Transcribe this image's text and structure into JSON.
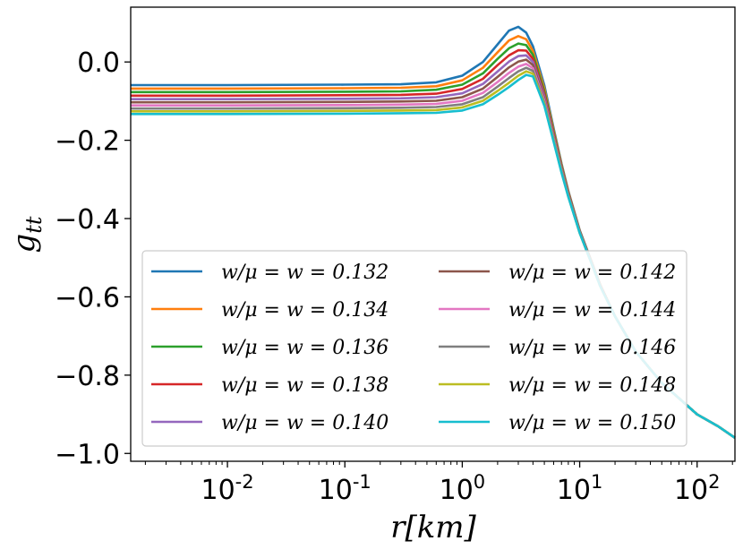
{
  "chart_data": {
    "type": "line",
    "title": "",
    "xlabel": "r[km]",
    "ylabel": "g",
    "ylabel_sub": "tt",
    "xscale": "log",
    "xlim": [
      0.0015,
      210
    ],
    "ylim": [
      -1.02,
      0.14
    ],
    "x_ticks": [
      {
        "value": 0.01,
        "base": "10",
        "exp": "-2"
      },
      {
        "value": 0.1,
        "base": "10",
        "exp": "-1"
      },
      {
        "value": 1,
        "base": "10",
        "exp": "0"
      },
      {
        "value": 10,
        "base": "10",
        "exp": "1"
      },
      {
        "value": 100,
        "base": "10",
        "exp": "2"
      }
    ],
    "y_ticks": [
      {
        "value": 0.0,
        "label": "0.0"
      },
      {
        "value": -0.2,
        "label": "−0.2"
      },
      {
        "value": -0.4,
        "label": "−0.4"
      },
      {
        "value": -0.6,
        "label": "−0.6"
      },
      {
        "value": -0.8,
        "label": "−0.8"
      },
      {
        "value": -1.0,
        "label": "−1.0"
      }
    ],
    "legend_position": "lower-left",
    "x": [
      0.0015,
      0.01,
      0.1,
      0.3,
      0.6,
      1.0,
      1.5,
      2.0,
      2.5,
      3.0,
      3.5,
      4.0,
      5.0,
      6.0,
      7.0,
      8.0,
      10.0,
      13.0,
      15.0,
      20.0,
      30.0,
      50.0,
      100.0,
      150.0,
      210.0
    ],
    "series": [
      {
        "name": "w/μ = w = 0.132",
        "color": "#1f77b4",
        "values": [
          -0.059,
          -0.059,
          -0.058,
          -0.057,
          -0.052,
          -0.035,
          0.0,
          0.045,
          0.08,
          0.09,
          0.075,
          0.04,
          -0.06,
          -0.17,
          -0.26,
          -0.33,
          -0.43,
          -0.52,
          -0.57,
          -0.65,
          -0.74,
          -0.82,
          -0.9,
          -0.93,
          -0.96
        ]
      },
      {
        "name": "w/μ = w = 0.134",
        "color": "#ff7f0e",
        "values": [
          -0.068,
          -0.068,
          -0.067,
          -0.066,
          -0.062,
          -0.047,
          -0.015,
          0.025,
          0.055,
          0.066,
          0.058,
          0.028,
          -0.068,
          -0.175,
          -0.263,
          -0.332,
          -0.431,
          -0.521,
          -0.57,
          -0.65,
          -0.74,
          -0.82,
          -0.9,
          -0.93,
          -0.96
        ]
      },
      {
        "name": "w/μ = w = 0.136",
        "color": "#2ca02c",
        "values": [
          -0.077,
          -0.077,
          -0.076,
          -0.075,
          -0.071,
          -0.058,
          -0.029,
          0.008,
          0.035,
          0.047,
          0.043,
          0.018,
          -0.075,
          -0.18,
          -0.266,
          -0.334,
          -0.432,
          -0.522,
          -0.571,
          -0.65,
          -0.74,
          -0.82,
          -0.9,
          -0.93,
          -0.96
        ]
      },
      {
        "name": "w/μ = w = 0.138",
        "color": "#d62728",
        "values": [
          -0.086,
          -0.086,
          -0.085,
          -0.084,
          -0.081,
          -0.069,
          -0.043,
          -0.008,
          0.017,
          0.03,
          0.029,
          0.008,
          -0.082,
          -0.184,
          -0.269,
          -0.336,
          -0.433,
          -0.522,
          -0.571,
          -0.65,
          -0.74,
          -0.82,
          -0.9,
          -0.93,
          -0.96
        ]
      },
      {
        "name": "w/μ = w = 0.140",
        "color": "#9467bd",
        "values": [
          -0.095,
          -0.095,
          -0.094,
          -0.093,
          -0.09,
          -0.08,
          -0.056,
          -0.024,
          0.001,
          0.015,
          0.017,
          0.0,
          -0.088,
          -0.188,
          -0.272,
          -0.338,
          -0.434,
          -0.523,
          -0.572,
          -0.65,
          -0.74,
          -0.82,
          -0.9,
          -0.93,
          -0.96
        ]
      },
      {
        "name": "w/μ = w = 0.142",
        "color": "#8c564b",
        "values": [
          -0.103,
          -0.103,
          -0.102,
          -0.101,
          -0.099,
          -0.09,
          -0.068,
          -0.038,
          -0.014,
          0.001,
          0.006,
          -0.008,
          -0.094,
          -0.192,
          -0.275,
          -0.34,
          -0.435,
          -0.523,
          -0.572,
          -0.65,
          -0.74,
          -0.82,
          -0.9,
          -0.93,
          -0.96
        ]
      },
      {
        "name": "w/μ = w = 0.144",
        "color": "#e377c2",
        "values": [
          -0.111,
          -0.111,
          -0.11,
          -0.109,
          -0.107,
          -0.099,
          -0.079,
          -0.051,
          -0.028,
          -0.012,
          -0.005,
          -0.016,
          -0.099,
          -0.195,
          -0.277,
          -0.342,
          -0.436,
          -0.524,
          -0.573,
          -0.65,
          -0.74,
          -0.82,
          -0.9,
          -0.93,
          -0.96
        ]
      },
      {
        "name": "w/μ = w = 0.146",
        "color": "#7f7f7f",
        "values": [
          -0.119,
          -0.119,
          -0.118,
          -0.117,
          -0.115,
          -0.108,
          -0.09,
          -0.063,
          -0.041,
          -0.024,
          -0.015,
          -0.023,
          -0.104,
          -0.198,
          -0.279,
          -0.343,
          -0.436,
          -0.524,
          -0.573,
          -0.65,
          -0.74,
          -0.82,
          -0.9,
          -0.93,
          -0.96
        ]
      },
      {
        "name": "w/μ = w = 0.148",
        "color": "#bcbd22",
        "values": [
          -0.126,
          -0.126,
          -0.125,
          -0.124,
          -0.123,
          -0.116,
          -0.099,
          -0.074,
          -0.053,
          -0.035,
          -0.024,
          -0.03,
          -0.108,
          -0.201,
          -0.281,
          -0.344,
          -0.437,
          -0.525,
          -0.574,
          -0.65,
          -0.74,
          -0.82,
          -0.9,
          -0.93,
          -0.96
        ]
      },
      {
        "name": "w/μ = w = 0.150",
        "color": "#17becf",
        "values": [
          -0.133,
          -0.133,
          -0.132,
          -0.131,
          -0.13,
          -0.124,
          -0.108,
          -0.084,
          -0.064,
          -0.046,
          -0.033,
          -0.037,
          -0.112,
          -0.204,
          -0.283,
          -0.345,
          -0.437,
          -0.525,
          -0.574,
          -0.65,
          -0.74,
          -0.82,
          -0.9,
          -0.93,
          -0.96
        ]
      }
    ]
  }
}
